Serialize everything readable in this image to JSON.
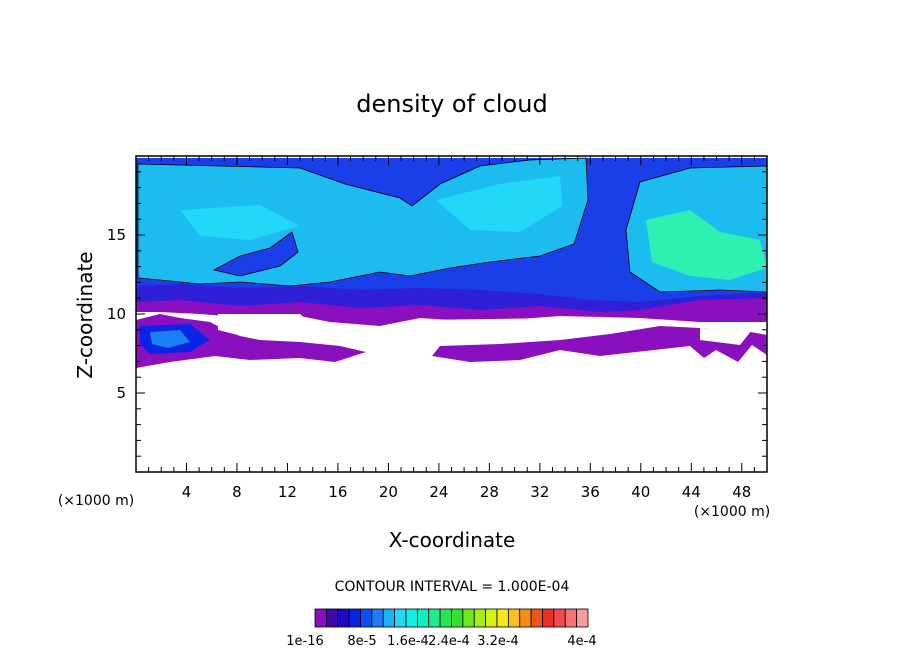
{
  "chart_data": {
    "type": "heatmap",
    "title": "density of cloud",
    "xlabel": "X-coordinate",
    "ylabel": "Z-coordinate",
    "x_unit": "(×1000 m)",
    "y_unit": "(×1000 m)",
    "xlim": [
      0,
      50
    ],
    "ylim": [
      0,
      20
    ],
    "x_ticks": [
      "4",
      "8",
      "12",
      "16",
      "20",
      "24",
      "28",
      "32",
      "36",
      "40",
      "44",
      "48"
    ],
    "y_ticks": [
      "5",
      "10",
      "15"
    ],
    "contour_interval": "CONTOUR INTERVAL = 1.000E-04",
    "colorbar_labels": [
      "1e-16",
      "8e-5",
      "1.6e-4",
      "2.4e-4",
      "3.2e-4",
      "4e-4"
    ],
    "colorbar_colors": [
      "#8a0fbe",
      "#3f06a8",
      "#1f07c6",
      "#0a24e6",
      "#0d4ff0",
      "#1a7ef5",
      "#1fb0f7",
      "#22d8f6",
      "#12eee0",
      "#10eebb",
      "#1ded8b",
      "#25e858",
      "#38e02e",
      "#6ee820",
      "#a6ec19",
      "#d6f11a",
      "#f5e81c",
      "#f7c01d",
      "#f78c18",
      "#f0561a",
      "#ef2d22",
      "#f04b4b",
      "#f47575",
      "#f79c9c"
    ],
    "regions": [
      {
        "level": "1e-16",
        "color": "#8a0fbe",
        "x": [
          0,
          50
        ],
        "z": [
          6.5,
          11.5
        ]
      },
      {
        "level": "~4e-5",
        "color": "#1a3ee8",
        "x": [
          0,
          50
        ],
        "z": [
          10.5,
          19.5
        ]
      },
      {
        "level": "~8e-5",
        "color": "#1cbcf0",
        "x": [
          0,
          36
        ],
        "z": [
          12,
          19.2
        ]
      },
      {
        "level": "~1.2e-4",
        "color": "#2ef0b0",
        "x": [
          40,
          50
        ],
        "z": [
          12.5,
          16.5
        ]
      }
    ]
  }
}
